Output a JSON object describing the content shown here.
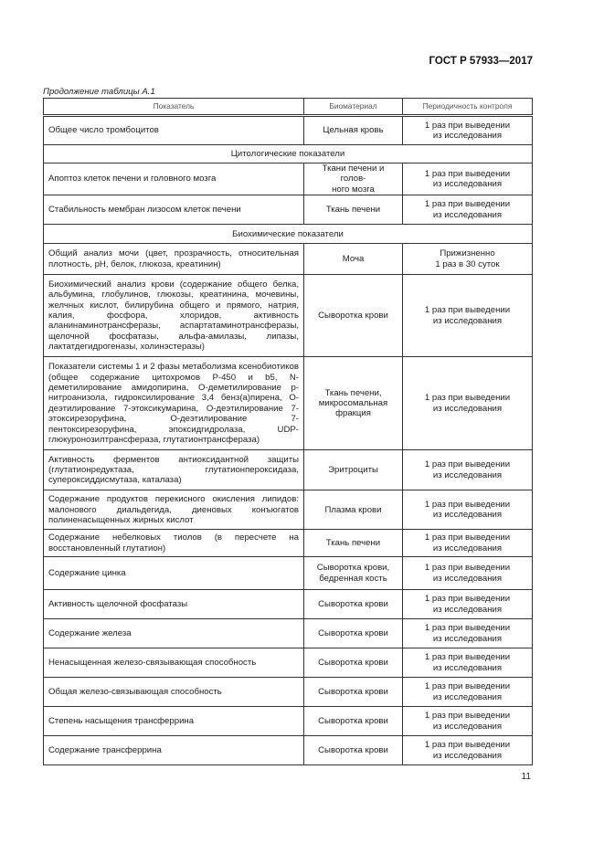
{
  "header": {
    "standard": "ГОСТ Р 57933—2017"
  },
  "caption": "Продолжение таблицы А.1",
  "table": {
    "columns": [
      "Показатель",
      "Биоматериал",
      "Периодичность контроля"
    ],
    "rows": [
      {
        "type": "row",
        "cells": [
          "Общее число тромбоцитов",
          "Цельная кровь",
          "1 раз при выведении\nиз исследования"
        ]
      },
      {
        "type": "section",
        "text": "Цитологические показатели"
      },
      {
        "type": "row",
        "cells": [
          "Апоптоз клеток печени и головного мозга",
          "Ткани печени и голов-\nного мозга",
          "1 раз при выведении\nиз исследования"
        ]
      },
      {
        "type": "row",
        "cells": [
          "Стабильность мембран лизосом клеток печени",
          "Ткань печени",
          "1 раз при выведении\nиз исследования"
        ]
      },
      {
        "type": "section",
        "text": "Биохимические показатели"
      },
      {
        "type": "row",
        "cells": [
          "Общий анализ мочи (цвет, прозрачность, относительная плотность, pH, белок, глюкоза, креатинин)",
          "Моча",
          "Прижизненно\n1 раз в 30 суток"
        ]
      },
      {
        "type": "row",
        "cells": [
          "Биохимический анализ крови (содержание общего белка, альбумина, глобулинов, глюкозы, креатинина, мочевины, желчных кислот, билирубина общего и прямого, натрия, калия, фосфора, хлоридов, активность аланинаминотрансферазы, аспартатаминотрансферазы, щелочной фосфатазы, альфа-амилазы, липазы, лактатдегидрогеназы, холинэстеразы)",
          "Сыворотка крови",
          "1 раз при выведении\nиз исследования"
        ]
      },
      {
        "type": "row",
        "cells": [
          "Показатели системы 1 и 2 фазы метаболизма ксенобиотиков (общее содержание цитохромов P-450 и b5, N-деметилирование амидопирина, О-деметилирование p-нитроанизола, гидроксилирование 3,4 бенз(а)пирена, О-деэтилирование 7-этоксикумарина, О-деэтилирование 7-этоксирезоруфина, О-деэтилирование 7-пентоксирезоруфина, эпоксидгидролаза, UDP-глюкуронозилтрансфераза, глутатионтрансфераза)",
          "Ткань печени,\nмикросомальная\nфракция",
          "1 раз при выведении\nиз исследования"
        ]
      },
      {
        "type": "row",
        "cells": [
          "Активность ферментов антиоксидантной защиты (глутатионредуктаза, глутатионпероксидаза, супероксиддисмутаза, каталаза)",
          "Эритроциты",
          "1 раз при выведении\nиз исследования"
        ]
      },
      {
        "type": "row",
        "cells": [
          "Содержание продуктов перекисного окисления липидов: малонового диальдегида, диеновых конъюгатов полиненасыщенных жирных кислот",
          "Плазма крови",
          "1 раз при выведении\nиз исследования"
        ]
      },
      {
        "type": "row",
        "cells": [
          "Содержание небелковых тиолов (в пересчете на восстановленный глутатион)",
          "Ткань печени",
          "1 раз при выведении\nиз исследования"
        ]
      },
      {
        "type": "row",
        "cells": [
          "Содержание цинка",
          "Сыворотка крови,\nбедренная кость",
          "1 раз при выведении\nиз исследования"
        ]
      },
      {
        "type": "row",
        "cells": [
          "Активность щелочной фосфатазы",
          "Сыворотка крови",
          "1 раз при выведении\nиз исследования"
        ]
      },
      {
        "type": "row",
        "cells": [
          "Содержание железа",
          "Сыворотка крови",
          "1 раз при выведении\nиз исследования"
        ]
      },
      {
        "type": "row",
        "cells": [
          "Ненасыщенная железо-связывающая способность",
          "Сыворотка крови",
          "1 раз при выведении\nиз исследования"
        ]
      },
      {
        "type": "row",
        "cells": [
          "Общая железо-связывающая способность",
          "Сыворотка крови",
          "1 раз при выведении\nиз исследования"
        ]
      },
      {
        "type": "row",
        "cells": [
          "Степень насыщения трансферрина",
          "Сыворотка крови",
          "1 раз при выведении\nиз исследования"
        ]
      },
      {
        "type": "row",
        "cells": [
          "Содержание трансферрина",
          "Сыворотка крови",
          "1 раз при выведении\nиз исследования"
        ]
      }
    ]
  },
  "footer": {
    "page_number": "11"
  }
}
